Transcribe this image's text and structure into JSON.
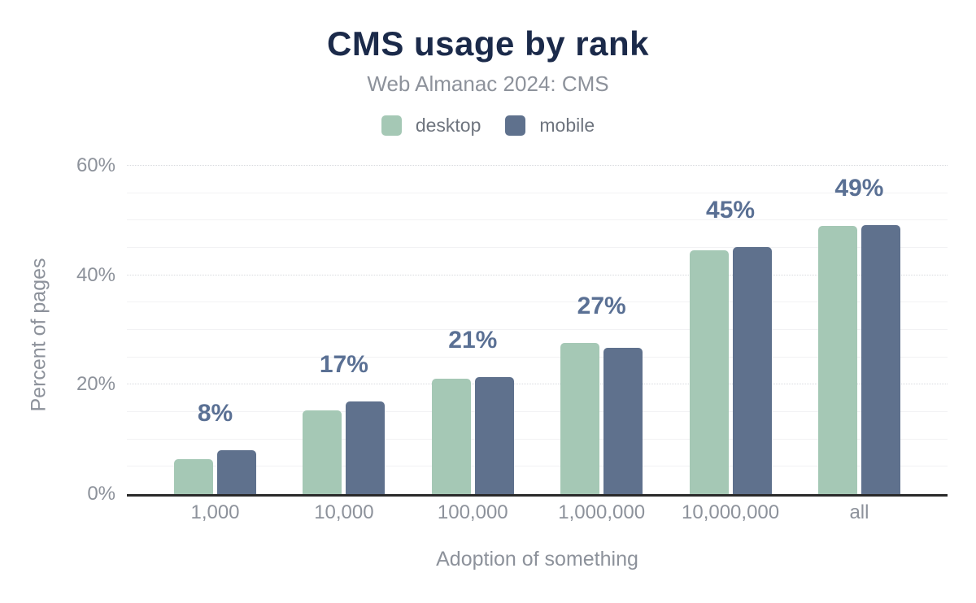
{
  "header": {
    "title": "CMS usage by rank",
    "subtitle": "Web Almanac 2024: CMS"
  },
  "legend": {
    "items": [
      {
        "label": "desktop",
        "color": "#a5c8b5"
      },
      {
        "label": "mobile",
        "color": "#5f718d"
      }
    ]
  },
  "chart_data": {
    "type": "bar",
    "title": "CMS usage by rank",
    "subtitle": "Web Almanac 2024: CMS",
    "categories": [
      "1,000",
      "10,000",
      "100,000",
      "1,000,000",
      "10,000,000",
      "all"
    ],
    "series": [
      {
        "name": "desktop",
        "color": "#a5c8b5",
        "values": [
          6.4,
          15.3,
          21.1,
          27.7,
          44.6,
          49.0
        ]
      },
      {
        "name": "mobile",
        "color": "#5f718d",
        "values": [
          8.0,
          16.9,
          21.4,
          26.8,
          45.1,
          49.1
        ]
      }
    ],
    "value_labels": [
      "8%",
      "17%",
      "21%",
      "27%",
      "45%",
      "49%"
    ],
    "xlabel": "Adoption of something",
    "ylabel": "Percent of pages",
    "ylim": [
      0,
      60
    ],
    "yticks": [
      0,
      20,
      40,
      60
    ],
    "ytick_labels": [
      "0%",
      "20%",
      "40%",
      "60%"
    ],
    "grid_step": 5,
    "grid_major_step": 20,
    "legend_position": "top",
    "colors": {
      "title": "#1b2a4a",
      "subtitle": "#8d929b",
      "axis_text": "#8d929b",
      "legend_text": "#6e747e",
      "value_label": "#5a7094",
      "axis_line": "#2a2a2a",
      "grid_major": "#d8dade",
      "grid_minor": "#f2f2f4"
    }
  }
}
